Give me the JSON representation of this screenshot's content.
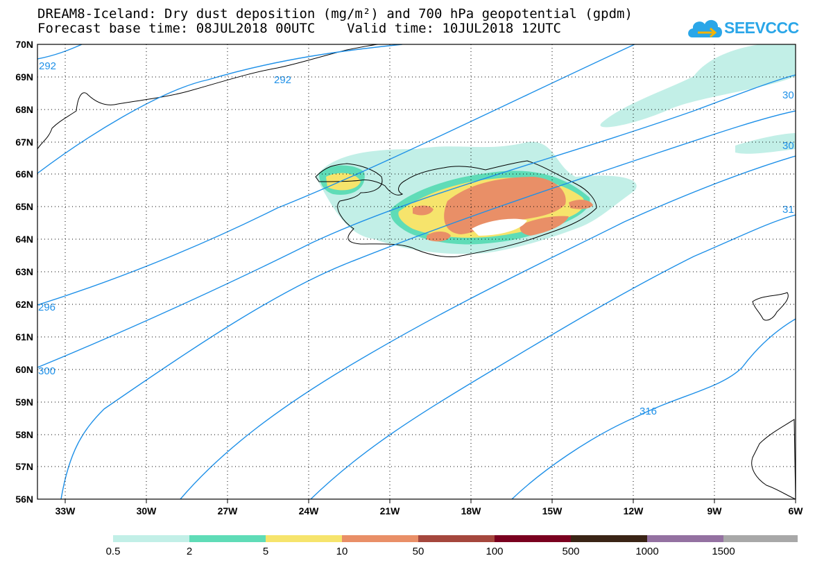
{
  "header": {
    "title_line1": "DREAM8-Iceland: Dry dust deposition (mg/m²) and 700 hPa geopotential (gpdm)",
    "title_line2": "Forecast base time: 08JUL2018 00UTC    Valid time: 10JUL2018 12UTC"
  },
  "logo": {
    "text": "SEEVCCC",
    "icon": "cloud-icon"
  },
  "map": {
    "lat_labels": [
      "70N",
      "69N",
      "68N",
      "67N",
      "66N",
      "65N",
      "64N",
      "63N",
      "62N",
      "61N",
      "60N",
      "59N",
      "58N",
      "57N",
      "56N"
    ],
    "lon_labels": [
      "33W",
      "30W",
      "27W",
      "24W",
      "21W",
      "18W",
      "15W",
      "12W",
      "9W",
      "6W"
    ],
    "contour_labels": [
      "292",
      "292",
      "296",
      "300",
      "316",
      "30",
      "30",
      "31"
    ]
  },
  "colorbar": {
    "colors": [
      "#c2efe7",
      "#5fdcb7",
      "#f6e46c",
      "#e98f67",
      "#a5473d",
      "#7a001f",
      "#3a2415",
      "#9471a1",
      "#a8a8a8"
    ],
    "labels": [
      "0.5",
      "2",
      "5",
      "10",
      "50",
      "100",
      "500",
      "1000",
      "1500"
    ]
  }
}
